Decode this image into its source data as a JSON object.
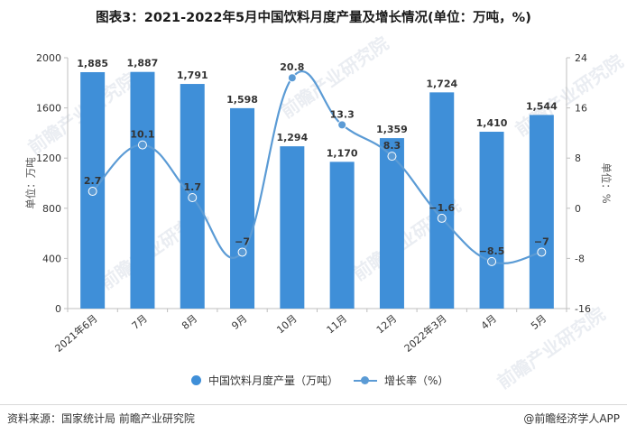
{
  "title": "图表3：2021-2022年5月中国饮料月度产量及增长情况(单位：万吨，%)",
  "footer": {
    "source": "资料来源：国家统计局 前瞻产业研究院",
    "app": "@前瞻经济学人APP"
  },
  "watermark": "前瞻产业研究院",
  "colors": {
    "bar": "#3f8fd8",
    "line": "#5b9bd5",
    "axis": "#bfbfbf",
    "text": "#333333"
  },
  "chart_data": {
    "type": "bar+line",
    "categories": [
      "2021年6月",
      "7月",
      "8月",
      "9月",
      "10月",
      "11月",
      "12月",
      "2022年3月",
      "4月",
      "5月"
    ],
    "series": [
      {
        "name": "中国饮料月度产量（万吨）",
        "type": "bar",
        "axis": "left",
        "values": [
          1885,
          1887,
          1791,
          1598,
          1294,
          1170,
          1359,
          1724,
          1410,
          1544
        ],
        "labels": [
          "1,885",
          "1,887",
          "1,791",
          "1,598",
          "1,294",
          "1,170",
          "1,359",
          "1,724",
          "1,410",
          "1,544"
        ]
      },
      {
        "name": "增长率（%）",
        "type": "line",
        "axis": "right",
        "smooth": true,
        "values": [
          2.7,
          10.1,
          1.7,
          -7,
          20.8,
          13.3,
          8.3,
          -1.6,
          -8.5,
          -7
        ],
        "labels": [
          "2.7",
          "10.1",
          "1.7",
          "−7",
          "20.8",
          "13.3",
          "8.3",
          "−1.6",
          "−8.5",
          "−7"
        ]
      }
    ],
    "y_left": {
      "label": "单位：万吨",
      "range": [
        0,
        2000
      ],
      "ticks": [
        "0",
        "400",
        "800",
        "1200",
        "1600",
        "2000"
      ],
      "tick_values": [
        0,
        400,
        800,
        1200,
        1600,
        2000
      ]
    },
    "y_right": {
      "label": "单位：%",
      "range": [
        -16,
        24
      ],
      "ticks": [
        "-16",
        "-8",
        "0",
        "8",
        "16",
        "24"
      ],
      "tick_values": [
        -16,
        -8,
        0,
        8,
        16,
        24
      ]
    },
    "grid": false,
    "legend": "bottom"
  }
}
